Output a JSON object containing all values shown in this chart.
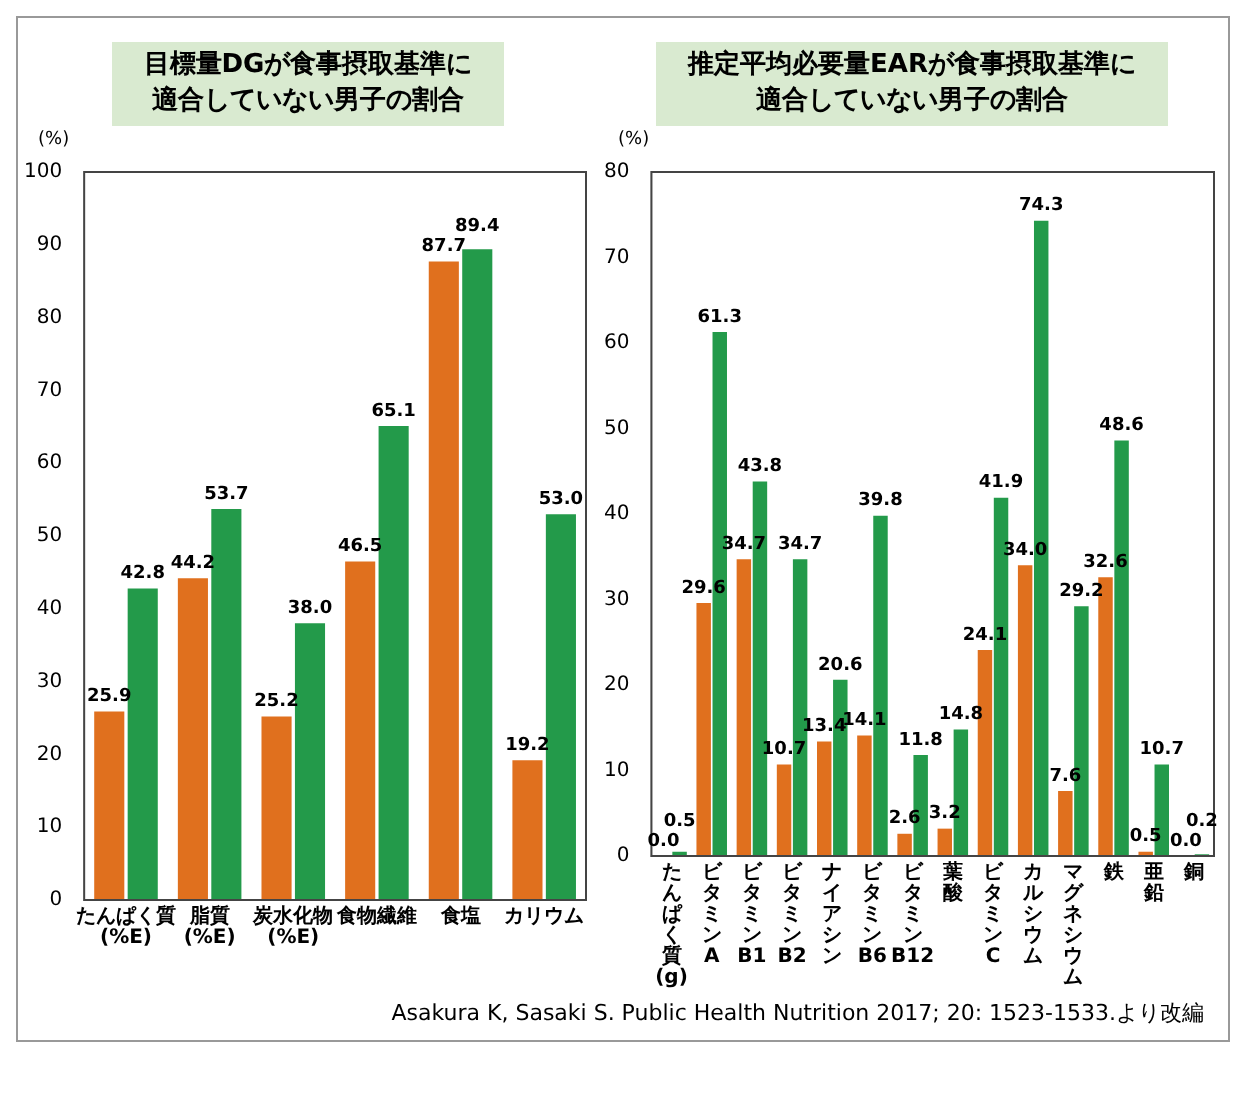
{
  "chart_data": [
    {
      "type": "bar",
      "title": "目標量DGが食事摂取基準に適合していない男子の割合",
      "ylabel": "(%)",
      "categories": [
        "たんぱく質\n(%E)",
        "脂質\n(%E)",
        "炭水化物\n(%E)",
        "食物繊維",
        "食塩",
        "カリウム"
      ],
      "ylim": [
        0,
        100
      ],
      "yticks": [
        0,
        10,
        20,
        30,
        40,
        50,
        60,
        70,
        80,
        90,
        100
      ],
      "grid": false,
      "series": [
        {
          "color": "#e0701e",
          "values": [
            25.9,
            44.2,
            25.2,
            46.5,
            87.7,
            19.2
          ],
          "value_labels": [
            "25.9",
            "44.2",
            "25.2",
            "46.5",
            "87.7",
            "19.2"
          ]
        },
        {
          "color": "#239a4a",
          "values": [
            42.8,
            53.7,
            38.0,
            65.1,
            89.4,
            53.0
          ],
          "value_labels": [
            "42.8",
            "53.7",
            "38.0",
            "65.1",
            "89.4",
            "53.0"
          ]
        }
      ]
    },
    {
      "type": "bar",
      "title": "推定平均必要量EARが食事摂取基準に適合していない男子の割合",
      "ylabel": "(%)",
      "categories": [
        "たんぱく質(g)",
        "ビタミンA",
        "ビタミンB1",
        "ビタミンB2",
        "ナイアシン",
        "ビタミンB6",
        "ビタミンB12",
        "葉酸",
        "ビタミンC",
        "カルシウム",
        "マグネシウム",
        "鉄",
        "亜鉛",
        "銅"
      ],
      "ylim": [
        0,
        80
      ],
      "yticks": [
        0,
        10,
        20,
        30,
        40,
        50,
        60,
        70,
        80
      ],
      "grid": false,
      "annotations": [
        "Asakura K, Sasaki S. Public Health Nutrition 2017; 20: 1523-1533.より改編"
      ],
      "series": [
        {
          "color": "#e0701e",
          "values": [
            0.0,
            29.6,
            34.7,
            10.7,
            13.4,
            14.1,
            2.6,
            3.2,
            24.1,
            34.0,
            7.6,
            32.6,
            0.5,
            0.0
          ],
          "value_labels": [
            "0.0",
            "29.6",
            "34.7",
            "10.7",
            "13.4",
            "14.1",
            "2.6",
            "3.2",
            "24.1",
            "34.0",
            "7.6",
            "32.6",
            "0.5",
            "0.0"
          ]
        },
        {
          "color": "#239a4a",
          "values": [
            0.5,
            61.3,
            43.8,
            34.7,
            20.6,
            39.8,
            11.8,
            14.8,
            41.9,
            74.3,
            29.2,
            48.6,
            10.7,
            0.2
          ],
          "value_labels": [
            "0.5",
            "61.3",
            "43.8",
            "34.7",
            "20.6",
            "39.8",
            "11.8",
            "14.8",
            "41.9",
            "74.3",
            "29.2",
            "48.6",
            "10.7",
            "0.2"
          ]
        }
      ]
    }
  ]
}
